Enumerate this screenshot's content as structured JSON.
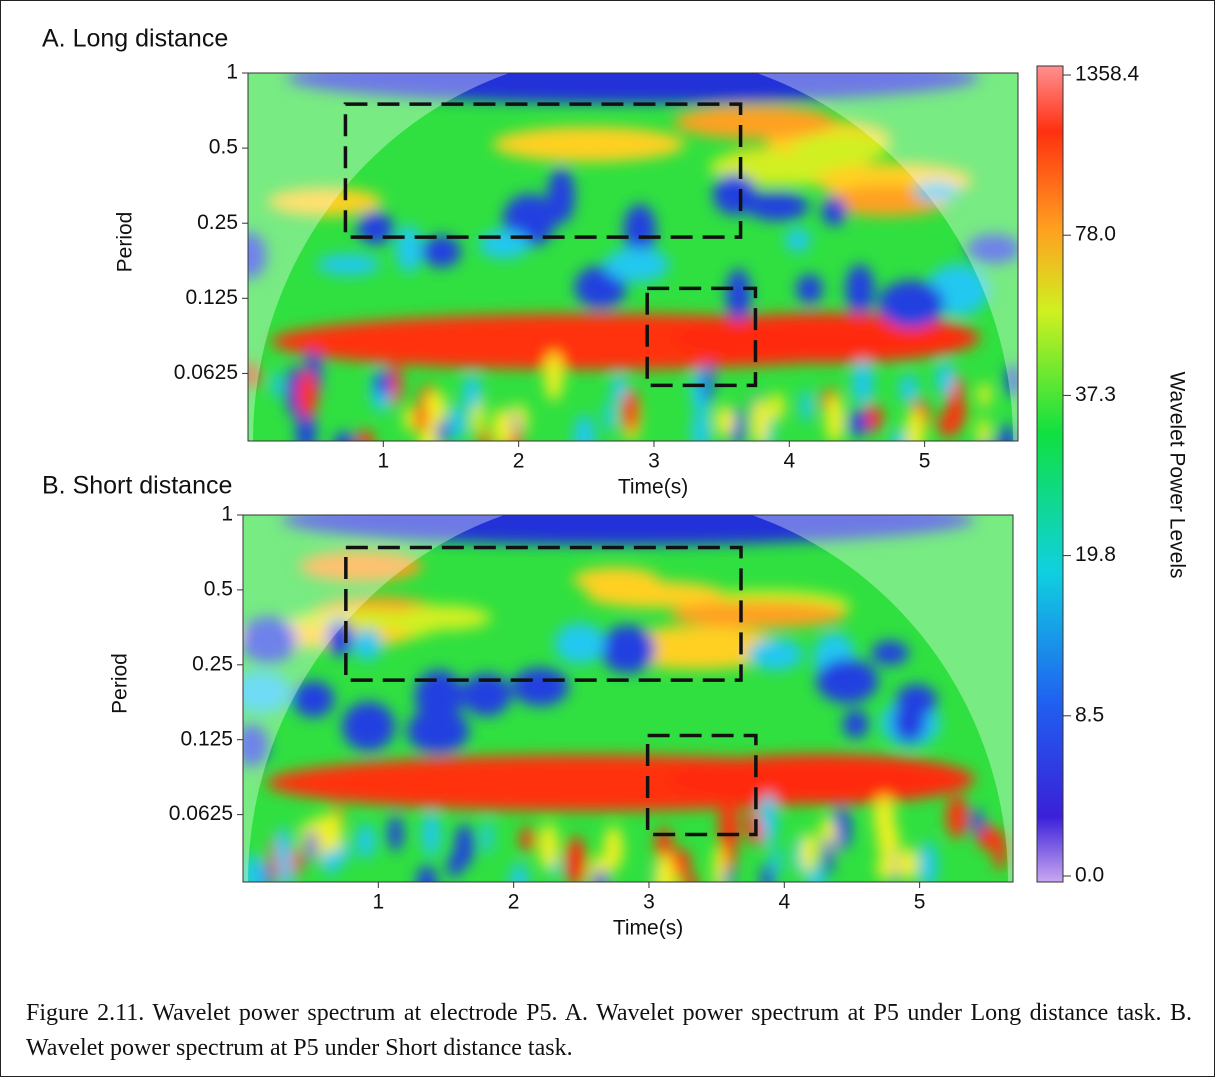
{
  "chart_data": [
    {
      "type": "heatmap",
      "title": "A. Long distance",
      "x_label": "Time(s)",
      "y_label": "Period",
      "xlim": [
        0,
        5.69
      ],
      "xticks": [
        1,
        2,
        3,
        4,
        5
      ],
      "ylim": [
        0.0335,
        1
      ],
      "yticks": [
        1,
        0.5,
        0.25,
        0.125,
        0.0625
      ],
      "y_scale": "log",
      "boxes": [
        {
          "x": [
            0.72,
            3.64
          ],
          "y": [
            0.22,
            0.75
          ]
        },
        {
          "x": [
            2.95,
            3.75
          ],
          "y": [
            0.056,
            0.137
          ]
        }
      ]
    },
    {
      "type": "heatmap",
      "title": "B. Short distance",
      "x_label": "Time(s)",
      "y_label": "Period",
      "xlim": [
        0,
        5.69
      ],
      "xticks": [
        1,
        2,
        3,
        4,
        5
      ],
      "ylim": [
        0.0335,
        1
      ],
      "yticks": [
        1,
        0.5,
        0.25,
        0.125,
        0.0625
      ],
      "y_scale": "log",
      "boxes": [
        {
          "x": [
            0.76,
            3.68
          ],
          "y": [
            0.217,
            0.74
          ]
        },
        {
          "x": [
            2.99,
            3.79
          ],
          "y": [
            0.052,
            0.13
          ]
        }
      ]
    }
  ],
  "colorbar": {
    "label": "Wavelet Power Levels",
    "ticks": [
      1358.4,
      {
        "value": 78,
        "label": "78.0"
      },
      37.3,
      19.8,
      8.5,
      {
        "value": 0,
        "label": "0.0"
      }
    ]
  },
  "caption": "Figure 2.11. Wavelet power spectrum at electrode P5. A. Wavelet power spectrum at P5 under Long distance task. B. Wavelet power spectrum at P5 under Short distance task."
}
